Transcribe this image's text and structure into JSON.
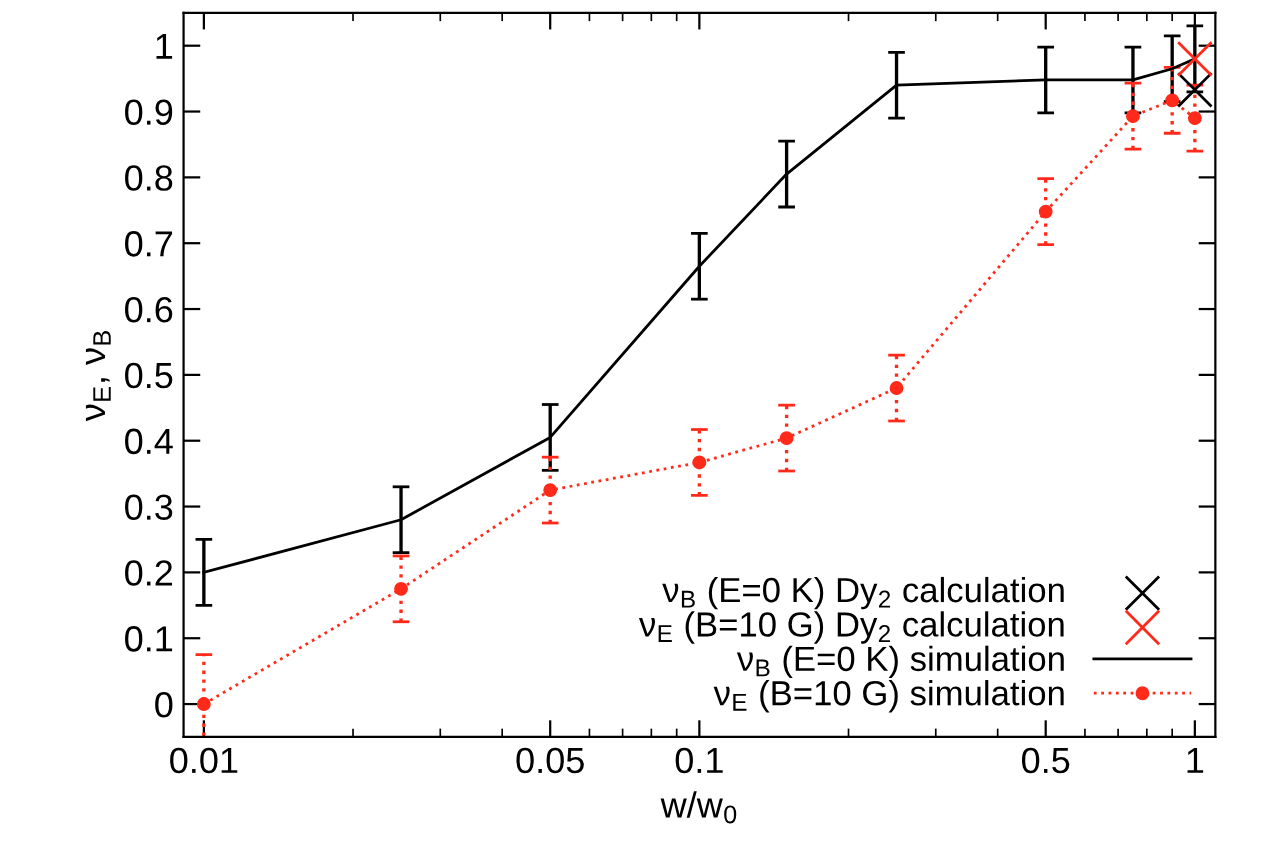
{
  "chart_data": {
    "type": "line",
    "xlabel": "w/w$_{0}$",
    "ylabel": "ν$_{E}$, ν$_{B}$",
    "log": "x",
    "xlim": [
      0.0091,
      1.1
    ],
    "xticks": [
      0.01,
      0.05,
      0.1,
      0.5,
      1
    ],
    "ylim": [
      -0.05,
      1.05
    ],
    "yticks": [
      {
        "value": 0,
        "label": "0"
      },
      0.1,
      0.2,
      0.3,
      0.4,
      0.5,
      0.6,
      0.7,
      0.8,
      0.9,
      {
        "value": 1,
        "label": "1"
      }
    ],
    "grid": false,
    "legend": "bottom right",
    "series": [
      {
        "name": "ν$_{B}$ (E=0 K) Dy$_{2}$ calculation",
        "type": "scatter",
        "marker": "cross",
        "color": "#000000",
        "x": [
          1
        ],
        "values": [
          0.933
        ]
      },
      {
        "name": "ν$_{E}$ (B=10 G) Dy$_{2}$ calculation",
        "type": "scatter",
        "marker": "cross",
        "color": "#ff2a1a",
        "x": [
          1
        ],
        "values": [
          0.98
        ]
      },
      {
        "name": "ν$_{B}$ (E=0 K) simulation",
        "marker": "none",
        "line_style": "solid",
        "color": "#000000",
        "x": [
          0.01,
          0.025,
          0.05,
          0.1,
          0.15,
          0.25,
          0.5,
          0.75,
          0.9,
          1
        ],
        "values": [
          0.2,
          0.28,
          0.405,
          0.665,
          0.805,
          0.94,
          0.948,
          0.948,
          0.965,
          0.98
        ],
        "errors": [
          0.05,
          0.05,
          0.05,
          0.05,
          0.05,
          0.05,
          0.05,
          0.05,
          0.05,
          0.05
        ]
      },
      {
        "name": "ν$_{E}$ (B=10 G) simulation",
        "marker": "circle",
        "line_style": "dotted",
        "color": "#ff2a1a",
        "x": [
          0.01,
          0.025,
          0.05,
          0.1,
          0.15,
          0.25,
          0.5,
          0.75,
          0.9,
          1
        ],
        "values": [
          0,
          0.175,
          0.325,
          0.367,
          0.404,
          0.48,
          0.748,
          0.893,
          0.917,
          0.89
        ],
        "errors": [
          0.075,
          0.05,
          0.05,
          0.05,
          0.05,
          0.05,
          0.05,
          0.05,
          0.05,
          0.05
        ]
      }
    ]
  }
}
